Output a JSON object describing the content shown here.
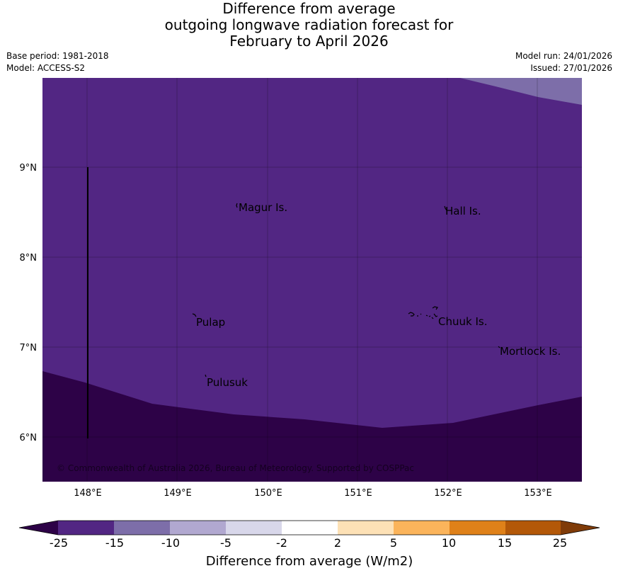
{
  "header": {
    "title_lines": [
      "Difference from average",
      "outgoing longwave radiation forecast for",
      "February to April 2026"
    ],
    "base_period": "Base period: 1981-2018",
    "model": "Model: ACCESS-S2",
    "model_run": "Model run: 24/01/2026",
    "issued": "Issued: 27/01/2026"
  },
  "map": {
    "lat_ticks": [
      "9°N",
      "8°N",
      "7°N",
      "6°N"
    ],
    "lon_ticks": [
      "148°E",
      "149°E",
      "150°E",
      "151°E",
      "152°E",
      "153°E"
    ],
    "places": [
      "Magur Is.",
      "Hall Is.",
      "Pulap",
      "Chuuk Is.",
      "Mortlock Is.",
      "Pulusuk"
    ],
    "copyright": "© Commonwealth of Australia 2026, Bureau of Meteorology. Supported by COSPPac",
    "fill_colors": {
      "below_25": "#2d0247",
      "range_m25_m15": "#522683",
      "range_m15_m10": "#7d6ea9"
    }
  },
  "colorbar": {
    "tick_labels": [
      "-25",
      "-15",
      "-10",
      "-5",
      "-2",
      "2",
      "5",
      "10",
      "15",
      "25"
    ],
    "label": "Difference from average (W/m2)",
    "colors": [
      "#2d0247",
      "#522683",
      "#7d6ea9",
      "#b1a8d0",
      "#d8d7ea",
      "#ffffff",
      "#fde1b6",
      "#fbb45b",
      "#df8119",
      "#b35808",
      "#7f3b08"
    ]
  }
}
